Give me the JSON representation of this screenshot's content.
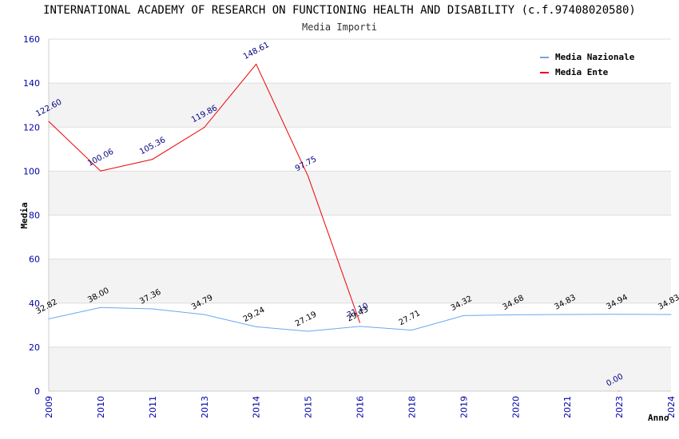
{
  "chart_data": {
    "type": "line",
    "title": "INTERNATIONAL ACADEMY OF RESEARCH ON FUNCTIONING HEALTH AND DISABILITY (c.f.97408020580)",
    "subtitle": "Media Importi",
    "xlabel": "Anno",
    "ylabel": "Media",
    "ylim": [
      0,
      160
    ],
    "yticks": [
      0,
      20,
      40,
      60,
      80,
      100,
      120,
      140,
      160
    ],
    "categories": [
      "2009",
      "2010",
      "2011",
      "2013",
      "2014",
      "2015",
      "2016",
      "2018",
      "2019",
      "2020",
      "2021",
      "2023",
      "2024"
    ],
    "legend_position": "top-right",
    "grid": true,
    "series": [
      {
        "name": "Media Nazionale",
        "color": "#66aaee",
        "values": [
          32.82,
          38.0,
          37.36,
          34.79,
          29.24,
          27.19,
          29.43,
          27.71,
          34.32,
          34.68,
          34.83,
          34.94,
          34.83
        ],
        "labels": [
          "32.82",
          "38.00",
          "37.36",
          "34.79",
          "29.24",
          "27.19",
          "29.43",
          "27.71",
          "34.32",
          "34.68",
          "34.83",
          "34.94",
          "34.83"
        ]
      },
      {
        "name": "Media Ente",
        "color": "#ee0000",
        "values": [
          122.6,
          100.06,
          105.36,
          119.86,
          148.61,
          97.75,
          31.1,
          null,
          null,
          null,
          null,
          0.0,
          null
        ],
        "labels": [
          "122.60",
          "100.06",
          "105.36",
          "119.86",
          "148.61",
          "97.75",
          "31.10",
          null,
          null,
          null,
          null,
          "0.00",
          null
        ]
      }
    ]
  }
}
